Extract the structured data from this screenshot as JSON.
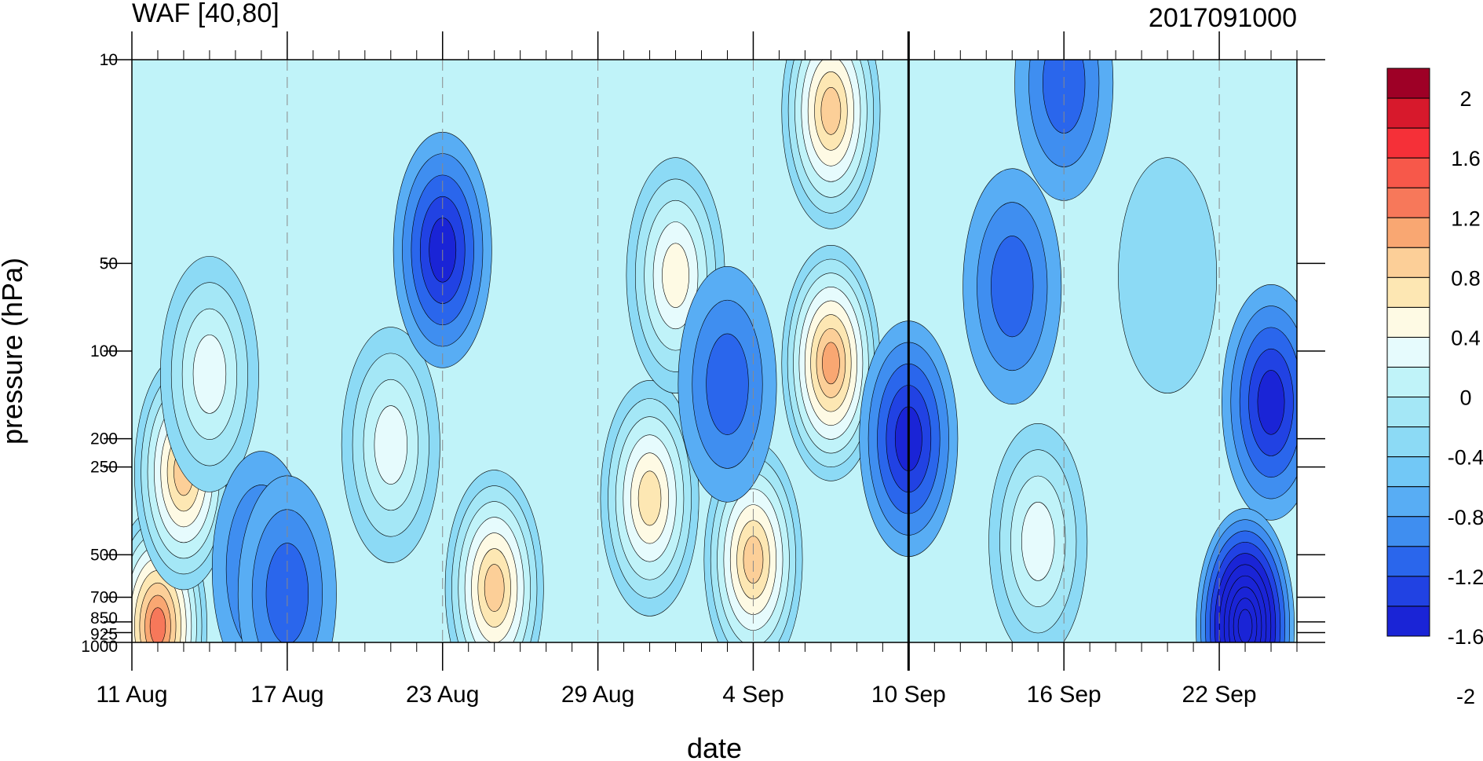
{
  "chart_data": {
    "type": "heatmap",
    "title_left": "WAF [40,80]",
    "title_right": "2017091000",
    "xlabel": "date",
    "ylabel": "pressure (hPa)",
    "x_start": "11 Aug",
    "x_end": "25 Sep",
    "x_tick_labels": [
      "11 Aug",
      "17 Aug",
      "23 Aug",
      "29 Aug",
      "4 Sep",
      "10 Sep",
      "16 Sep",
      "22 Sep"
    ],
    "y_scale": "log",
    "ylim": [
      1000,
      10
    ],
    "y_tick_values": [
      10,
      50,
      100,
      200,
      250,
      500,
      700,
      850,
      925,
      1000
    ],
    "y_tick_labels": [
      "10",
      "50",
      "100",
      "200",
      "250",
      "500",
      "700",
      "850",
      "925",
      "1000"
    ],
    "marker_line": "10 Sep",
    "colorbar_labels": [
      "2",
      "1.6",
      "1.2",
      "0.8",
      "0.4",
      "0",
      "-0.4",
      "-0.8",
      "-1.2",
      "-1.6",
      "-2"
    ],
    "colorbar_colors": [
      "#9e0026",
      "#d7192c",
      "#f53038",
      "#f7584a",
      "#f7785a",
      "#f9a772",
      "#fccf98",
      "#fde7b3",
      "#fefae4",
      "#e6fbfd",
      "#c0f3f9",
      "#a4e7f6",
      "#8cdaf5",
      "#72c8f6",
      "#58adf4",
      "#3f8ef0",
      "#2a66ec",
      "#2142e3",
      "#1a24d6"
    ],
    "anomalies": [
      {
        "date": "12 Aug",
        "pressure": 880,
        "value": 1.4
      },
      {
        "date": "13 Aug",
        "pressure": 260,
        "value": 1.0
      },
      {
        "date": "14 Aug",
        "pressure": 120,
        "value": 0.6
      },
      {
        "date": "16 Aug",
        "pressure": 560,
        "value": -0.9
      },
      {
        "date": "17 Aug",
        "pressure": 680,
        "value": -0.9
      },
      {
        "date": "21 Aug",
        "pressure": 210,
        "value": 0.6
      },
      {
        "date": "23 Aug",
        "pressure": 45,
        "value": -1.3
      },
      {
        "date": "25 Aug",
        "pressure": 650,
        "value": 1.0
      },
      {
        "date": "31 Aug",
        "pressure": 320,
        "value": 0.9
      },
      {
        "date": "1 Sep",
        "pressure": 55,
        "value": 0.7
      },
      {
        "date": "4 Sep",
        "pressure": 520,
        "value": 1.0
      },
      {
        "date": "3 Sep",
        "pressure": 130,
        "value": -0.8
      },
      {
        "date": "7 Sep",
        "pressure": 15,
        "value": 1.1
      },
      {
        "date": "7 Sep",
        "pressure": 110,
        "value": 1.2
      },
      {
        "date": "10 Sep",
        "pressure": 200,
        "value": -1.3
      },
      {
        "date": "15 Sep",
        "pressure": 450,
        "value": 0.5
      },
      {
        "date": "14 Sep",
        "pressure": 60,
        "value": -1.0
      },
      {
        "date": "20 Sep",
        "pressure": 55,
        "value": 0.0
      },
      {
        "date": "24 Sep",
        "pressure": 150,
        "value": -1.3
      },
      {
        "date": "23 Sep",
        "pressure": 880,
        "value": -2.2
      },
      {
        "date": "16 Sep",
        "pressure": 12,
        "value": -1.0
      }
    ]
  }
}
